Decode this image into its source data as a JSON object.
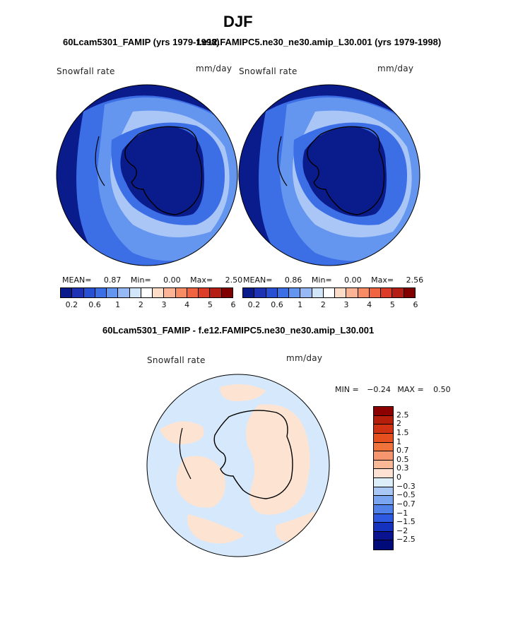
{
  "title": "DJF",
  "left_subtitle": "60Lcam5301_FAMIP (yrs 1979-1998)",
  "right_subtitle": "f.e12.FAMIPC5.ne30_ne30.amip_L30.001 (yrs 1979-1998)",
  "diff_subtitle": "60Lcam5301_FAMIP - f.e12.FAMIPC5.ne30_ne30.amip_L30.001",
  "panels": {
    "left": {
      "variable": "Snowfall rate",
      "units": "mm/day",
      "mean_label": "MEAN=",
      "mean": "0.87",
      "min_label": "Min=",
      "min": "0.00",
      "max_label": "Max=",
      "max": "2.50"
    },
    "right": {
      "variable": "Snowfall rate",
      "units": "mm/day",
      "mean_label": "MEAN=",
      "mean": "0.86",
      "min_label": "Min=",
      "min": "0.00",
      "max_label": "Max=",
      "max": "2.56"
    },
    "diff": {
      "variable": "Snowfall rate",
      "units": "mm/day",
      "min_label": "MIN =",
      "min": "−0.24",
      "max_label": "MAX =",
      "max": "0.50"
    }
  },
  "colorbar_h": {
    "ticks": [
      "0.2",
      "0.6",
      "1",
      "2",
      "3",
      "4",
      "5",
      "6"
    ],
    "colors": [
      "#0a1c8c",
      "#1e32b4",
      "#2850d2",
      "#3c6ee6",
      "#6496f0",
      "#96b9f5",
      "#d2e6fa",
      "#ffffff",
      "#fddcc8",
      "#fbb496",
      "#f88c64",
      "#f06441",
      "#dc3c28",
      "#b41e14",
      "#800000"
    ]
  },
  "colorbar_v": {
    "labels": [
      "2.5",
      "2",
      "1.5",
      "1",
      "0.7",
      "0.5",
      "0.3",
      "0",
      "−0.3",
      "−0.5",
      "−0.7",
      "−1",
      "−1.5",
      "−2",
      "−2.5"
    ],
    "colors": [
      "#8c0000",
      "#b41e0a",
      "#d23214",
      "#e6501e",
      "#f0733c",
      "#f5966e",
      "#fab996",
      "#fde1d2",
      "#dceefa",
      "#aac8f5",
      "#7aa5f0",
      "#5082ea",
      "#2d5ae1",
      "#1432be",
      "#0a1490",
      "#000a78"
    ]
  },
  "colors": {
    "deep_blue": "#0a1c8c",
    "mid_blue": "#4a78e6",
    "light_blue": "#a9c6f6",
    "pale_blue": "#d6e8fb",
    "pale_orange": "#fde4d2"
  }
}
